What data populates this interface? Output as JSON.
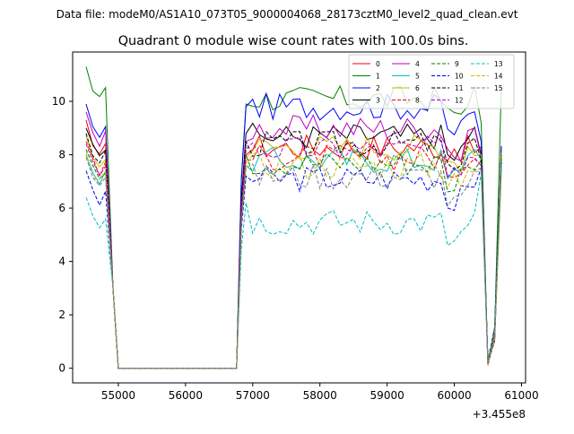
{
  "figure": {
    "suptitle": "Data file: modeM0/AS1A10_073T05_9000004068_28173cztM0_level2_quad_clean.evt",
    "offset_label": "+3.455e8"
  },
  "chart_data": {
    "type": "line",
    "title": "Quadrant 0 module wise count rates with 100.0s bins.",
    "xlabel": "",
    "ylabel": "",
    "x_offset": 345500000,
    "xlim": [
      54320,
      61060
    ],
    "ylim": [
      -0.55,
      11.85
    ],
    "xticks": [
      55000,
      56000,
      57000,
      58000,
      59000,
      60000,
      61000
    ],
    "yticks": [
      0,
      2,
      4,
      6,
      8,
      10
    ],
    "grid": false,
    "legend": {
      "placement": "top-right",
      "columns": 4
    },
    "series": [
      {
        "name": "0",
        "color": "#ff0000",
        "dash": "solid",
        "level": 8.3
      },
      {
        "name": "1",
        "color": "#008000",
        "dash": "solid",
        "level": 10.1
      },
      {
        "name": "2",
        "color": "#0000ff",
        "dash": "solid",
        "level": 9.8
      },
      {
        "name": "3",
        "color": "#000000",
        "dash": "solid",
        "level": 8.7
      },
      {
        "name": "4",
        "color": "#bf00bf",
        "dash": "solid",
        "level": 9.0
      },
      {
        "name": "5",
        "color": "#00bfbf",
        "dash": "solid",
        "level": 7.8
      },
      {
        "name": "6",
        "color": "#bfbf00",
        "dash": "solid",
        "level": 8.3
      },
      {
        "name": "8",
        "color": "#ff0000",
        "dash": "dashed",
        "level": 7.9
      },
      {
        "name": "9",
        "color": "#008000",
        "dash": "dashed",
        "level": 7.7
      },
      {
        "name": "10",
        "color": "#0000ff",
        "dash": "dashed",
        "level": 7.1
      },
      {
        "name": "11",
        "color": "#000000",
        "dash": "dashed",
        "level": 8.4
      },
      {
        "name": "12",
        "color": "#bf00bf",
        "dash": "dashed",
        "level": 8.2
      },
      {
        "name": "13",
        "color": "#00bfbf",
        "dash": "dashed",
        "level": 5.5
      },
      {
        "name": "14",
        "color": "#bfbf00",
        "dash": "dashed",
        "level": 7.6
      },
      {
        "name": "15",
        "color": "#808080",
        "dash": "dashed",
        "level": 7.2
      }
    ]
  }
}
